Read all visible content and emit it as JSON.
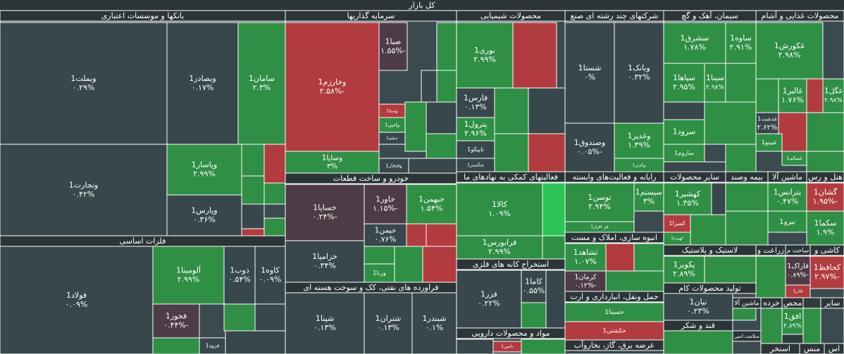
{
  "title": "کل بازار",
  "sectors": [
    {
      "label": "بانکها و موسسات اعتباری"
    },
    {
      "label": "فلزات اساسی"
    },
    {
      "label": "سرمایه گذاریها"
    },
    {
      "label": "خودرو و ساخت قطعات"
    },
    {
      "label": "فراورده های نفتی، کک و سوخت هسته ای"
    },
    {
      "label": "محصولات شیمیایی"
    },
    {
      "label": "فعالیتهای کمکی به نهادهای ما"
    },
    {
      "label": "استخراج کانه های فلزی"
    },
    {
      "label": "مواد و محصولات دارویی"
    },
    {
      "label": "شرکتهای چند رشته ای صنع"
    },
    {
      "label": "رایانه و فعالیت‌های وابسته"
    },
    {
      "label": "انبوه سازی، املاک و مست"
    },
    {
      "label": "حمل ونقل، انبارداری و ارت"
    },
    {
      "label": "عرضه برق، گاز، بخاروآب"
    },
    {
      "label": "سیمان، آهک و گچ"
    },
    {
      "label": "محصولات غذایی و آشام"
    },
    {
      "label": "سایر محصولات"
    },
    {
      "label": "بیمه وصند"
    },
    {
      "label": "ماشین آلا"
    },
    {
      "label": "هتل و رس"
    },
    {
      "label": "لاستیک و پلاستیک"
    },
    {
      "label": "زراعت و"
    },
    {
      "label": "ساخت م"
    },
    {
      "label": "کاشی و"
    },
    {
      "label": "تولید محصولات کام"
    },
    {
      "label": "قند و شکر"
    },
    {
      "label": "ماشین آلا"
    },
    {
      "label": "خرده"
    },
    {
      "label": "محص"
    },
    {
      "label": "سایر"
    },
    {
      "label": "سلامت انس"
    },
    {
      "label": "استخر"
    },
    {
      "label": "منس"
    },
    {
      "label": "اس"
    }
  ],
  "tiles": [
    {
      "name": "وبملت1",
      "change": "۰.۲۹%"
    },
    {
      "name": "وتجارت1",
      "change": "۰.۴۲%"
    },
    {
      "name": "وبصادر1",
      "change": "۰.۱۷%"
    },
    {
      "name": "سامان1",
      "change": "۲.۳%"
    },
    {
      "name": "وپاسار1",
      "change": "۲.۹۹%"
    },
    {
      "name": "وپارس1",
      "change": "۰.۳۶%"
    },
    {
      "name": "فولاد1",
      "change": "۰.۰۹%"
    },
    {
      "name": "آلومینا1",
      "change": "۲.۹۹%"
    },
    {
      "name": "ذوب1",
      "change": "۰.۵۴%"
    },
    {
      "name": "کاوه1",
      "change": "۰.۰۹%"
    },
    {
      "name": "فخوز1",
      "change": "-۰.۴۴%"
    },
    {
      "name": "فرود1"
    },
    {
      "name": "وخارزم1",
      "change": "-۲.۵۸%"
    },
    {
      "name": "صبا1",
      "change": "-۱.۵۵%"
    },
    {
      "name": "وسنا1"
    },
    {
      "name": "وامین1"
    },
    {
      "name": "سلیم1"
    },
    {
      "name": "وفتخار1"
    },
    {
      "name": "وساپا1",
      "change": "۳%"
    },
    {
      "name": "خساپا1",
      "change": "-۰.۲۴%"
    },
    {
      "name": "خاور1",
      "change": "-۱.۱۵%"
    },
    {
      "name": "خبهمن1",
      "change": "۱.۵۴%"
    },
    {
      "name": "خیمن1",
      "change": "۰.۷۶%"
    },
    {
      "name": "خزامیا1",
      "change": "۰.۳۴%"
    },
    {
      "name": "ورنا1"
    },
    {
      "name": "شپنا1",
      "change": "۰.۱۳%"
    },
    {
      "name": "شتران1",
      "change": "۰.۱۳%"
    },
    {
      "name": "شبندر1",
      "change": "۰.۱%"
    },
    {
      "name": "نوری1",
      "change": "۲.۹۹%"
    },
    {
      "name": "فارس1",
      "change": "۰.۱۳%"
    },
    {
      "name": "پترول1",
      "change": "۲.۹۶%"
    },
    {
      "name": "تاپیکو1"
    },
    {
      "name": "شگستر1"
    },
    {
      "name": "کالا1",
      "change": "۱.۰۹%"
    },
    {
      "name": "فرابورس1",
      "change": "۲.۹۹%"
    },
    {
      "name": "فزر1",
      "change": "۰.۲۲%"
    },
    {
      "name": "کاما1",
      "change": "۰.۵۵%"
    },
    {
      "name": "دامین1"
    },
    {
      "name": "شستا1",
      "change": "۰%"
    },
    {
      "name": "وبانک1",
      "change": "۰.۳۲%"
    },
    {
      "name": "وصندوق1",
      "change": "-۰.۰۵%"
    },
    {
      "name": "وغدیر1",
      "change": "۱.۳۹%"
    },
    {
      "name": "وکدیر1"
    },
    {
      "name": "توسن1",
      "change": "۲.۹۴%"
    },
    {
      "name": "سیستم1",
      "change": "۳%"
    },
    {
      "name": "فن افزار1"
    },
    {
      "name": "ثشاهد1",
      "change": "۱.۰۷%"
    },
    {
      "name": "کرمان1",
      "change": "-۰.۱۲%"
    },
    {
      "name": "حسینا1"
    },
    {
      "name": "حکشتی1"
    },
    {
      "name": "سشرق1",
      "change": "۱.۷۸%"
    },
    {
      "name": "ساوه1",
      "change": "۲.۹۱%"
    },
    {
      "name": "سپاها1",
      "change": "۲.۹۵%"
    },
    {
      "name": "سینا1",
      "change": "۲.۹۸%"
    },
    {
      "name": "سرود1"
    },
    {
      "name": "ساروم1"
    },
    {
      "name": "غکورش1",
      "change": "۲.۹۸%"
    },
    {
      "name": "غالبر1",
      "change": "۱.۷۶%"
    },
    {
      "name": "غگل1",
      "change": "۲.۹۸%"
    },
    {
      "name": "غدشت1",
      "change": "۲.۶۲%"
    },
    {
      "name": "غبینو1"
    },
    {
      "name": "غسالم1"
    },
    {
      "name": "کهشیر1",
      "change": "۱.۳۵%"
    },
    {
      "name": "کسرا1"
    },
    {
      "name": "کهمدا1"
    },
    {
      "name": "بترانس1",
      "change": "۰.۴۷%"
    },
    {
      "name": "نیرو1"
    },
    {
      "name": "گشان1",
      "change": "-۱.۹۵%"
    },
    {
      "name": "سکما1",
      "change": "۱.۹%"
    },
    {
      "name": "پکویر1",
      "change": "۲.۸۹%"
    },
    {
      "name": "فاراک1",
      "change": "-۰.۸۹%"
    },
    {
      "name": "کحافظ1",
      "change": "-۲.۹۷%"
    },
    {
      "name": "فاذر1"
    },
    {
      "name": "نیان1",
      "change": "۰.۲۳%"
    },
    {
      "name": "افق1",
      "change": "۲.۸۹%"
    }
  ]
}
